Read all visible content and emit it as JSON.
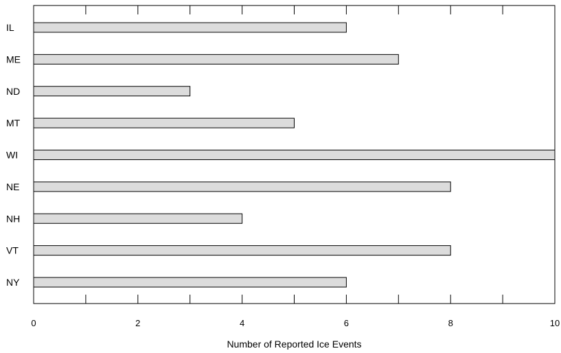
{
  "chart_data": {
    "type": "bar",
    "orientation": "horizontal",
    "categories": [
      "IL",
      "ME",
      "ND",
      "MT",
      "WI",
      "NE",
      "NH",
      "VT",
      "NY"
    ],
    "values": [
      6,
      7,
      3,
      5,
      10,
      8,
      4,
      8,
      6
    ],
    "title": "",
    "xlabel": "Number of Reported Ice Events",
    "ylabel": "",
    "xlim": [
      0,
      10
    ],
    "x_tick_labels": [
      "0",
      "2",
      "4",
      "6",
      "8",
      "10"
    ],
    "grid": false,
    "bar_color": "#dcdcdc",
    "edge_color": "#000000"
  }
}
